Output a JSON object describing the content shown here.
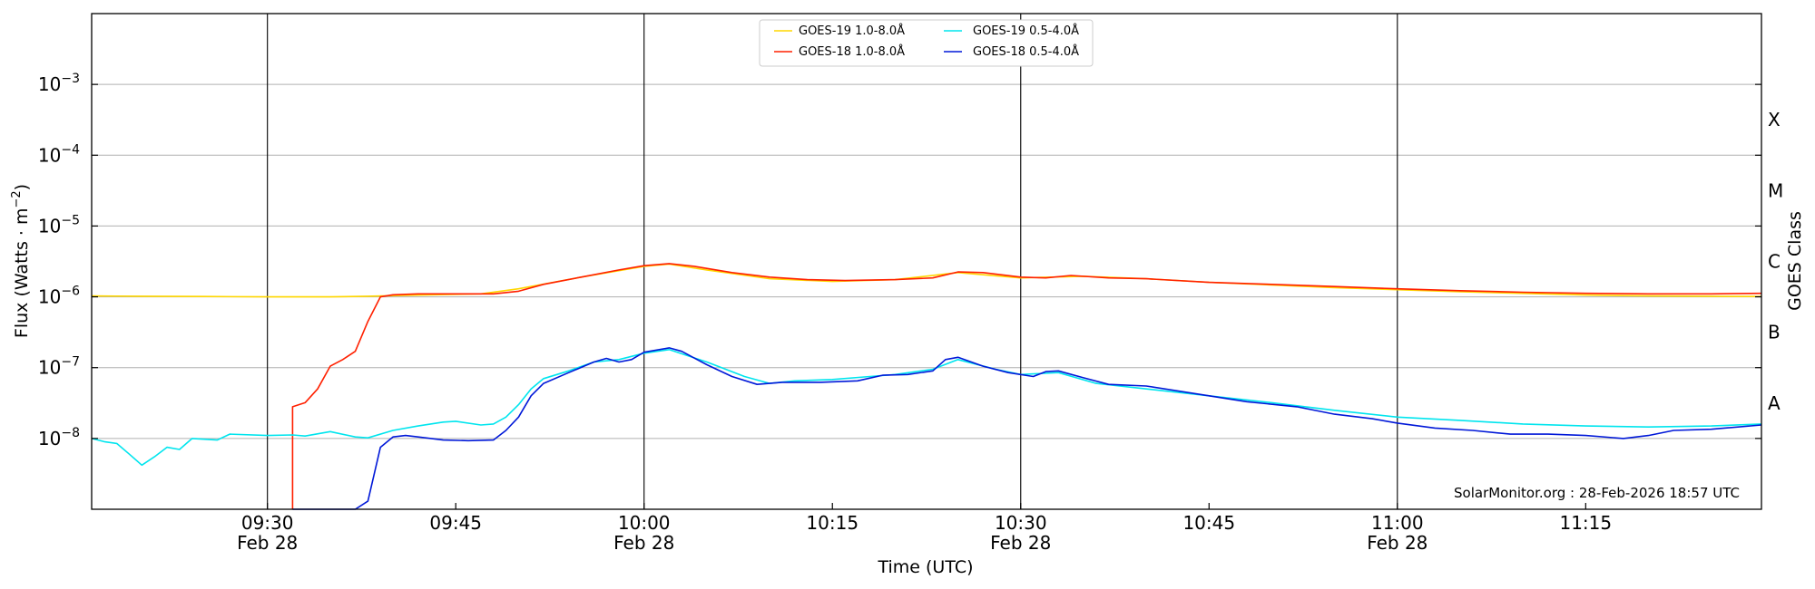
{
  "chart_data": {
    "type": "line",
    "ylabel": "Flux (Watts · m",
    "ylabel_sup": "−2",
    "ylabel_close": ")",
    "xlabel": "Time (UTC)",
    "right_label": "GOES Class",
    "credit": "SolarMonitor.org : 28-Feb-2026 18:57 UTC",
    "y_scale": "log",
    "ylim": [
      1e-09,
      0.01
    ],
    "xlim": [
      "2026-02-28T09:16",
      "2026-02-28T11:29"
    ],
    "y_ticks": [
      {
        "value": 1e-08,
        "exp": "−8"
      },
      {
        "value": 1e-07,
        "exp": "−7"
      },
      {
        "value": 1e-06,
        "exp": "−6"
      },
      {
        "value": 1e-05,
        "exp": "−5"
      },
      {
        "value": 0.0001,
        "exp": "−4"
      },
      {
        "value": 0.001,
        "exp": "−3"
      }
    ],
    "y_tick_base": "10",
    "x_ticks": [
      {
        "time": "2026-02-28T09:30",
        "label": "09:30",
        "date": "Feb 28"
      },
      {
        "time": "2026-02-28T09:45",
        "label": "09:45",
        "date": ""
      },
      {
        "time": "2026-02-28T10:00",
        "label": "10:00",
        "date": "Feb 28"
      },
      {
        "time": "2026-02-28T10:15",
        "label": "10:15",
        "date": ""
      },
      {
        "time": "2026-02-28T10:30",
        "label": "10:30",
        "date": "Feb 28"
      },
      {
        "time": "2026-02-28T10:45",
        "label": "10:45",
        "date": ""
      },
      {
        "time": "2026-02-28T11:00",
        "label": "11:00",
        "date": "Feb 28"
      },
      {
        "time": "2026-02-28T11:15",
        "label": "11:15",
        "date": ""
      }
    ],
    "vertical_lines": [
      "2026-02-28T09:30",
      "2026-02-28T10:00",
      "2026-02-28T10:30",
      "2026-02-28T11:00"
    ],
    "grid": "horizontal",
    "goes_classes": [
      {
        "label": "A",
        "value": 3.16e-08
      },
      {
        "label": "B",
        "value": 3.16e-07
      },
      {
        "label": "C",
        "value": 3.16e-06
      },
      {
        "label": "M",
        "value": 3.16e-05
      },
      {
        "label": "X",
        "value": 0.000316
      }
    ],
    "legend_position": "top-center",
    "series": [
      {
        "name": "GOES-19 1.0-8.0Å",
        "color": "#ffd700",
        "points": [
          [
            "2026-02-28T09:16",
            1.03e-06
          ],
          [
            "2026-02-28T09:20",
            1.02e-06
          ],
          [
            "2026-02-28T09:25",
            1.01e-06
          ],
          [
            "2026-02-28T09:30",
            1e-06
          ],
          [
            "2026-02-28T09:35",
            1e-06
          ],
          [
            "2026-02-28T09:38",
            1.02e-06
          ],
          [
            "2026-02-28T09:41",
            1.05e-06
          ],
          [
            "2026-02-28T09:47",
            1.1e-06
          ],
          [
            "2026-02-28T09:50",
            1.3e-06
          ],
          [
            "2026-02-28T09:55",
            1.9e-06
          ],
          [
            "2026-02-28T10:00",
            2.7e-06
          ],
          [
            "2026-02-28T10:02",
            2.9e-06
          ],
          [
            "2026-02-28T10:05",
            2.4e-06
          ],
          [
            "2026-02-28T10:10",
            1.8e-06
          ],
          [
            "2026-02-28T10:15",
            1.65e-06
          ],
          [
            "2026-02-28T10:20",
            1.75e-06
          ],
          [
            "2026-02-28T10:25",
            2.2e-06
          ],
          [
            "2026-02-28T10:30",
            1.85e-06
          ],
          [
            "2026-02-28T10:35",
            1.95e-06
          ],
          [
            "2026-02-28T10:40",
            1.8e-06
          ],
          [
            "2026-02-28T10:45",
            1.6e-06
          ],
          [
            "2026-02-28T10:55",
            1.35e-06
          ],
          [
            "2026-02-28T11:05",
            1.18e-06
          ],
          [
            "2026-02-28T11:15",
            1.06e-06
          ],
          [
            "2026-02-28T11:20",
            1.03e-06
          ],
          [
            "2026-02-28T11:29",
            1.01e-06
          ]
        ]
      },
      {
        "name": "GOES-18 1.0-8.0Å",
        "color": "#ff2000",
        "points": [
          [
            "2026-02-28T09:32",
            1e-09
          ],
          [
            "2026-02-28T09:32",
            2.8e-08
          ],
          [
            "2026-02-28T09:33",
            3.2e-08
          ],
          [
            "2026-02-28T09:34",
            5e-08
          ],
          [
            "2026-02-28T09:35",
            1.05e-07
          ],
          [
            "2026-02-28T09:36",
            1.3e-07
          ],
          [
            "2026-02-28T09:37",
            1.7e-07
          ],
          [
            "2026-02-28T09:38",
            4.5e-07
          ],
          [
            "2026-02-28T09:39",
            1e-06
          ],
          [
            "2026-02-28T09:40",
            1.07e-06
          ],
          [
            "2026-02-28T09:42",
            1.1e-06
          ],
          [
            "2026-02-28T09:45",
            1.1e-06
          ],
          [
            "2026-02-28T09:48",
            1.1e-06
          ],
          [
            "2026-02-28T09:50",
            1.2e-06
          ],
          [
            "2026-02-28T09:52",
            1.5e-06
          ],
          [
            "2026-02-28T09:55",
            1.9e-06
          ],
          [
            "2026-02-28T09:58",
            2.4e-06
          ],
          [
            "2026-02-28T10:00",
            2.75e-06
          ],
          [
            "2026-02-28T10:02",
            2.95e-06
          ],
          [
            "2026-02-28T10:04",
            2.7e-06
          ],
          [
            "2026-02-28T10:07",
            2.2e-06
          ],
          [
            "2026-02-28T10:10",
            1.9e-06
          ],
          [
            "2026-02-28T10:13",
            1.75e-06
          ],
          [
            "2026-02-28T10:16",
            1.7e-06
          ],
          [
            "2026-02-28T10:20",
            1.75e-06
          ],
          [
            "2026-02-28T10:23",
            1.85e-06
          ],
          [
            "2026-02-28T10:25",
            2.25e-06
          ],
          [
            "2026-02-28T10:27",
            2.2e-06
          ],
          [
            "2026-02-28T10:30",
            1.9e-06
          ],
          [
            "2026-02-28T10:32",
            1.85e-06
          ],
          [
            "2026-02-28T10:34",
            2e-06
          ],
          [
            "2026-02-28T10:37",
            1.85e-06
          ],
          [
            "2026-02-28T10:40",
            1.8e-06
          ],
          [
            "2026-02-28T10:45",
            1.6e-06
          ],
          [
            "2026-02-28T10:50",
            1.5e-06
          ],
          [
            "2026-02-28T10:55",
            1.4e-06
          ],
          [
            "2026-02-28T11:00",
            1.3e-06
          ],
          [
            "2026-02-28T11:05",
            1.22e-06
          ],
          [
            "2026-02-28T11:10",
            1.16e-06
          ],
          [
            "2026-02-28T11:15",
            1.12e-06
          ],
          [
            "2026-02-28T11:20",
            1.1e-06
          ],
          [
            "2026-02-28T11:25",
            1.1e-06
          ],
          [
            "2026-02-28T11:29",
            1.12e-06
          ]
        ]
      },
      {
        "name": "GOES-19 0.5-4.0Å",
        "color": "#00e5ee",
        "points": [
          [
            "2026-02-28T09:16",
            1e-08
          ],
          [
            "2026-02-28T09:17",
            9e-09
          ],
          [
            "2026-02-28T09:18",
            8.5e-09
          ],
          [
            "2026-02-28T09:19",
            6e-09
          ],
          [
            "2026-02-28T09:20",
            4.2e-09
          ],
          [
            "2026-02-28T09:21",
            5.5e-09
          ],
          [
            "2026-02-28T09:22",
            7.5e-09
          ],
          [
            "2026-02-28T09:23",
            7e-09
          ],
          [
            "2026-02-28T09:24",
            1e-08
          ],
          [
            "2026-02-28T09:26",
            9.5e-09
          ],
          [
            "2026-02-28T09:27",
            1.15e-08
          ],
          [
            "2026-02-28T09:30",
            1.1e-08
          ],
          [
            "2026-02-28T09:32",
            1.12e-08
          ],
          [
            "2026-02-28T09:33",
            1.08e-08
          ],
          [
            "2026-02-28T09:35",
            1.25e-08
          ],
          [
            "2026-02-28T09:37",
            1.05e-08
          ],
          [
            "2026-02-28T09:38",
            1.02e-08
          ],
          [
            "2026-02-28T09:40",
            1.3e-08
          ],
          [
            "2026-02-28T09:42",
            1.5e-08
          ],
          [
            "2026-02-28T09:44",
            1.7e-08
          ],
          [
            "2026-02-28T09:45",
            1.75e-08
          ],
          [
            "2026-02-28T09:47",
            1.55e-08
          ],
          [
            "2026-02-28T09:48",
            1.6e-08
          ],
          [
            "2026-02-28T09:49",
            2e-08
          ],
          [
            "2026-02-28T09:50",
            3e-08
          ],
          [
            "2026-02-28T09:51",
            5e-08
          ],
          [
            "2026-02-28T09:52",
            7e-08
          ],
          [
            "2026-02-28T09:54",
            9e-08
          ],
          [
            "2026-02-28T09:56",
            1.2e-07
          ],
          [
            "2026-02-28T09:58",
            1.3e-07
          ],
          [
            "2026-02-28T10:00",
            1.6e-07
          ],
          [
            "2026-02-28T10:02",
            1.8e-07
          ],
          [
            "2026-02-28T10:05",
            1.2e-07
          ],
          [
            "2026-02-28T10:08",
            7.5e-08
          ],
          [
            "2026-02-28T10:10",
            6e-08
          ],
          [
            "2026-02-28T10:12",
            6.5e-08
          ],
          [
            "2026-02-28T10:15",
            6.8e-08
          ],
          [
            "2026-02-28T10:18",
            7.5e-08
          ],
          [
            "2026-02-28T10:20",
            8e-08
          ],
          [
            "2026-02-28T10:23",
            9.5e-08
          ],
          [
            "2026-02-28T10:25",
            1.3e-07
          ],
          [
            "2026-02-28T10:28",
            9.5e-08
          ],
          [
            "2026-02-28T10:30",
            8e-08
          ],
          [
            "2026-02-28T10:33",
            8.5e-08
          ],
          [
            "2026-02-28T10:36",
            6e-08
          ],
          [
            "2026-02-28T10:40",
            5e-08
          ],
          [
            "2026-02-28T10:45",
            4e-08
          ],
          [
            "2026-02-28T10:50",
            3.2e-08
          ],
          [
            "2026-02-28T10:55",
            2.5e-08
          ],
          [
            "2026-02-28T11:00",
            2e-08
          ],
          [
            "2026-02-28T11:05",
            1.8e-08
          ],
          [
            "2026-02-28T11:10",
            1.6e-08
          ],
          [
            "2026-02-28T11:15",
            1.5e-08
          ],
          [
            "2026-02-28T11:20",
            1.45e-08
          ],
          [
            "2026-02-28T11:25",
            1.5e-08
          ],
          [
            "2026-02-28T11:29",
            1.6e-08
          ]
        ]
      },
      {
        "name": "GOES-18 0.5-4.0Å",
        "color": "#0018d8",
        "points": [
          [
            "2026-02-28T09:32",
            1e-09
          ],
          [
            "2026-02-28T09:37",
            1e-09
          ],
          [
            "2026-02-28T09:38",
            1.3e-09
          ],
          [
            "2026-02-28T09:39",
            7.5e-09
          ],
          [
            "2026-02-28T09:40",
            1.05e-08
          ],
          [
            "2026-02-28T09:41",
            1.1e-08
          ],
          [
            "2026-02-28T09:42",
            1.05e-08
          ],
          [
            "2026-02-28T09:44",
            9.5e-09
          ],
          [
            "2026-02-28T09:46",
            9.3e-09
          ],
          [
            "2026-02-28T09:48",
            9.5e-09
          ],
          [
            "2026-02-28T09:49",
            1.3e-08
          ],
          [
            "2026-02-28T09:50",
            2e-08
          ],
          [
            "2026-02-28T09:51",
            4e-08
          ],
          [
            "2026-02-28T09:52",
            6e-08
          ],
          [
            "2026-02-28T09:54",
            8.5e-08
          ],
          [
            "2026-02-28T09:56",
            1.2e-07
          ],
          [
            "2026-02-28T09:57",
            1.35e-07
          ],
          [
            "2026-02-28T09:58",
            1.2e-07
          ],
          [
            "2026-02-28T09:59",
            1.3e-07
          ],
          [
            "2026-02-28T10:00",
            1.65e-07
          ],
          [
            "2026-02-28T10:02",
            1.9e-07
          ],
          [
            "2026-02-28T10:03",
            1.7e-07
          ],
          [
            "2026-02-28T10:05",
            1.1e-07
          ],
          [
            "2026-02-28T10:07",
            7.5e-08
          ],
          [
            "2026-02-28T10:09",
            5.8e-08
          ],
          [
            "2026-02-28T10:11",
            6.2e-08
          ],
          [
            "2026-02-28T10:14",
            6.2e-08
          ],
          [
            "2026-02-28T10:17",
            6.5e-08
          ],
          [
            "2026-02-28T10:19",
            7.8e-08
          ],
          [
            "2026-02-28T10:21",
            8e-08
          ],
          [
            "2026-02-28T10:23",
            9e-08
          ],
          [
            "2026-02-28T10:24",
            1.3e-07
          ],
          [
            "2026-02-28T10:25",
            1.4e-07
          ],
          [
            "2026-02-28T10:27",
            1.05e-07
          ],
          [
            "2026-02-28T10:29",
            8.5e-08
          ],
          [
            "2026-02-28T10:31",
            7.5e-08
          ],
          [
            "2026-02-28T10:32",
            8.8e-08
          ],
          [
            "2026-02-28T10:33",
            9e-08
          ],
          [
            "2026-02-28T10:35",
            7.2e-08
          ],
          [
            "2026-02-28T10:37",
            5.8e-08
          ],
          [
            "2026-02-28T10:40",
            5.5e-08
          ],
          [
            "2026-02-28T10:45",
            4e-08
          ],
          [
            "2026-02-28T10:48",
            3.3e-08
          ],
          [
            "2026-02-28T10:52",
            2.8e-08
          ],
          [
            "2026-02-28T10:55",
            2.2e-08
          ],
          [
            "2026-02-28T10:58",
            1.9e-08
          ],
          [
            "2026-02-28T11:00",
            1.65e-08
          ],
          [
            "2026-02-28T11:03",
            1.4e-08
          ],
          [
            "2026-02-28T11:06",
            1.3e-08
          ],
          [
            "2026-02-28T11:09",
            1.15e-08
          ],
          [
            "2026-02-28T11:12",
            1.15e-08
          ],
          [
            "2026-02-28T11:15",
            1.1e-08
          ],
          [
            "2026-02-28T11:18",
            1e-08
          ],
          [
            "2026-02-28T11:20",
            1.1e-08
          ],
          [
            "2026-02-28T11:22",
            1.3e-08
          ],
          [
            "2026-02-28T11:25",
            1.35e-08
          ],
          [
            "2026-02-28T11:29",
            1.55e-08
          ]
        ]
      }
    ]
  }
}
